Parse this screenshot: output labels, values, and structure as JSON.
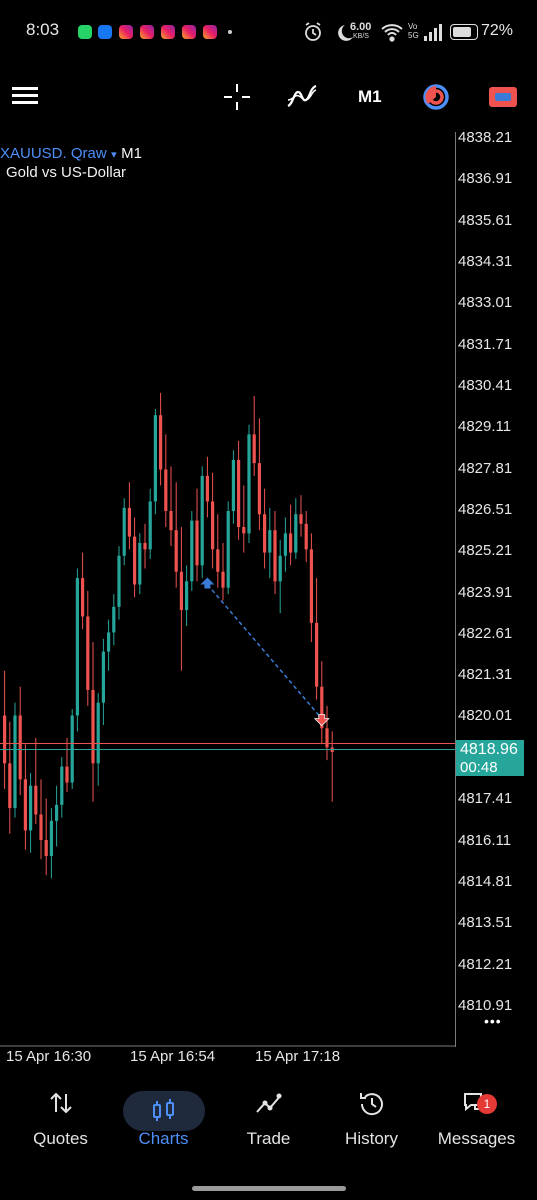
{
  "status_bar": {
    "time": "8:03",
    "net_speed_value": "6.00",
    "net_speed_unit": "KB/S",
    "volte": "Vo 5G",
    "battery": "72%"
  },
  "toolbar": {
    "timeframe": "M1",
    "icons": [
      "menu-icon",
      "crosshair-icon",
      "indicators-icon",
      "timeframe-button",
      "chart-color-icon",
      "trade-toggle-icon"
    ]
  },
  "chart": {
    "symbol": "XAUUSD. Qraw",
    "symbol_arrow": "▾",
    "timeframe": "M1",
    "description": "Gold vs US-Dollar",
    "price_scale": [
      "4838.21",
      "4836.91",
      "4835.61",
      "4834.31",
      "4833.01",
      "4831.71",
      "4830.41",
      "4829.11",
      "4827.81",
      "4826.51",
      "4825.21",
      "4823.91",
      "4822.61",
      "4821.31",
      "4820.01",
      "4817.41",
      "4816.11",
      "4814.81",
      "4813.51",
      "4812.21",
      "4810.91"
    ],
    "current_price": "4818.96",
    "bar_countdown": "00:48",
    "time_axis": [
      "15 Apr 16:30",
      "15 Apr 16:54",
      "15 Apr 17:18"
    ],
    "more_label": "•••",
    "colors": {
      "bull": "#26a69a",
      "bear": "#ef5350",
      "bid_line": "#ef5350",
      "ask_line": "#26a69a",
      "trade_line": "#3a7bd5",
      "accent": "#4d8ff7"
    }
  },
  "chart_data": {
    "type": "candlestick",
    "ylim": [
      4810.91,
      4838.21
    ],
    "grid": false,
    "bars": [
      [
        4820.1,
        4821.5,
        4817.8,
        4818.6
      ],
      [
        4818.6,
        4819.9,
        4816.4,
        4817.2
      ],
      [
        4817.2,
        4820.5,
        4816.9,
        4820.1
      ],
      [
        4820.1,
        4821.0,
        4817.6,
        4818.1
      ],
      [
        4818.1,
        4819.2,
        4815.9,
        4816.5
      ],
      [
        4816.5,
        4818.3,
        4815.8,
        4817.9
      ],
      [
        4817.9,
        4819.4,
        4816.7,
        4817.0
      ],
      [
        4817.0,
        4818.1,
        4815.6,
        4816.2
      ],
      [
        4816.2,
        4817.5,
        4815.1,
        4815.7
      ],
      [
        4815.7,
        4817.2,
        4815.0,
        4816.8
      ],
      [
        4816.8,
        4817.9,
        4816.0,
        4817.3
      ],
      [
        4817.3,
        4818.8,
        4816.9,
        4818.5
      ],
      [
        4818.5,
        4819.4,
        4817.7,
        4818.0
      ],
      [
        4818.0,
        4820.3,
        4817.8,
        4820.1
      ],
      [
        4820.1,
        4824.7,
        4819.6,
        4824.4
      ],
      [
        4824.4,
        4825.2,
        4822.8,
        4823.2
      ],
      [
        4823.2,
        4824.0,
        4820.4,
        4820.9
      ],
      [
        4820.9,
        4822.4,
        4817.4,
        4818.6
      ],
      [
        4818.6,
        4820.8,
        4817.9,
        4820.5
      ],
      [
        4820.5,
        4822.5,
        4819.8,
        4822.1
      ],
      [
        4822.1,
        4823.1,
        4821.5,
        4822.7
      ],
      [
        4822.7,
        4823.9,
        4822.3,
        4823.5
      ],
      [
        4823.5,
        4825.4,
        4823.1,
        4825.1
      ],
      [
        4825.1,
        4826.9,
        4824.8,
        4826.6
      ],
      [
        4826.6,
        4827.4,
        4825.3,
        4825.7
      ],
      [
        4825.7,
        4826.3,
        4823.8,
        4824.2
      ],
      [
        4824.2,
        4825.8,
        4823.9,
        4825.5
      ],
      [
        4825.5,
        4826.1,
        4824.7,
        4825.3
      ],
      [
        4825.3,
        4827.2,
        4825.0,
        4826.8
      ],
      [
        4826.8,
        4829.7,
        4826.4,
        4829.5
      ],
      [
        4829.5,
        4830.2,
        4827.3,
        4827.8
      ],
      [
        4827.8,
        4828.9,
        4826.0,
        4826.5
      ],
      [
        4826.5,
        4827.9,
        4825.4,
        4825.9
      ],
      [
        4825.9,
        4827.4,
        4824.1,
        4824.6
      ],
      [
        4824.6,
        4826.0,
        4821.5,
        4823.4
      ],
      [
        4823.4,
        4824.8,
        4822.9,
        4824.3
      ],
      [
        4824.3,
        4826.5,
        4824.0,
        4826.2
      ],
      [
        4826.2,
        4827.2,
        4824.3,
        4824.8
      ],
      [
        4824.8,
        4827.9,
        4824.4,
        4827.6
      ],
      [
        4827.6,
        4828.2,
        4826.3,
        4826.8
      ],
      [
        4826.8,
        4827.7,
        4824.7,
        4825.3
      ],
      [
        4825.3,
        4826.4,
        4824.1,
        4824.6
      ],
      [
        4824.6,
        4825.5,
        4823.7,
        4824.1
      ],
      [
        4824.1,
        4826.8,
        4823.9,
        4826.5
      ],
      [
        4826.5,
        4828.4,
        4826.1,
        4828.1
      ],
      [
        4828.1,
        4828.7,
        4825.6,
        4826.0
      ],
      [
        4826.0,
        4827.3,
        4825.2,
        4825.8
      ],
      [
        4825.8,
        4829.2,
        4825.5,
        4828.9
      ],
      [
        4828.9,
        4830.1,
        4827.6,
        4828.0
      ],
      [
        4828.0,
        4829.4,
        4825.9,
        4826.4
      ],
      [
        4826.4,
        4827.2,
        4824.7,
        4825.2
      ],
      [
        4825.2,
        4826.6,
        4824.4,
        4825.9
      ],
      [
        4825.9,
        4826.5,
        4823.9,
        4824.3
      ],
      [
        4824.3,
        4825.6,
        4823.3,
        4825.1
      ],
      [
        4825.1,
        4826.3,
        4824.6,
        4825.8
      ],
      [
        4825.8,
        4826.7,
        4824.8,
        4825.2
      ],
      [
        4825.2,
        4826.9,
        4825.0,
        4826.4
      ],
      [
        4826.4,
        4827.0,
        4825.7,
        4826.1
      ],
      [
        4826.1,
        4826.5,
        4824.9,
        4825.3
      ],
      [
        4825.3,
        4825.8,
        4822.4,
        4823.0
      ],
      [
        4823.0,
        4824.4,
        4820.6,
        4821.0
      ],
      [
        4821.0,
        4821.8,
        4819.2,
        4819.7
      ],
      [
        4819.7,
        4820.4,
        4818.7,
        4819.1
      ],
      [
        4819.1,
        4819.6,
        4817.4,
        4818.96
      ]
    ],
    "trade_open": {
      "bar": 39,
      "price": 4824.2
    },
    "trade_close": {
      "bar": 61,
      "price": 4820.0
    }
  },
  "bottom_nav": {
    "items": [
      {
        "label": "Quotes",
        "icon": "quotes-icon",
        "active": false
      },
      {
        "label": "Charts",
        "icon": "charts-icon",
        "active": true
      },
      {
        "label": "Trade",
        "icon": "trade-icon",
        "active": false
      },
      {
        "label": "History",
        "icon": "history-icon",
        "active": false
      },
      {
        "label": "Messages",
        "icon": "messages-icon",
        "active": false,
        "badge": "1"
      }
    ]
  }
}
